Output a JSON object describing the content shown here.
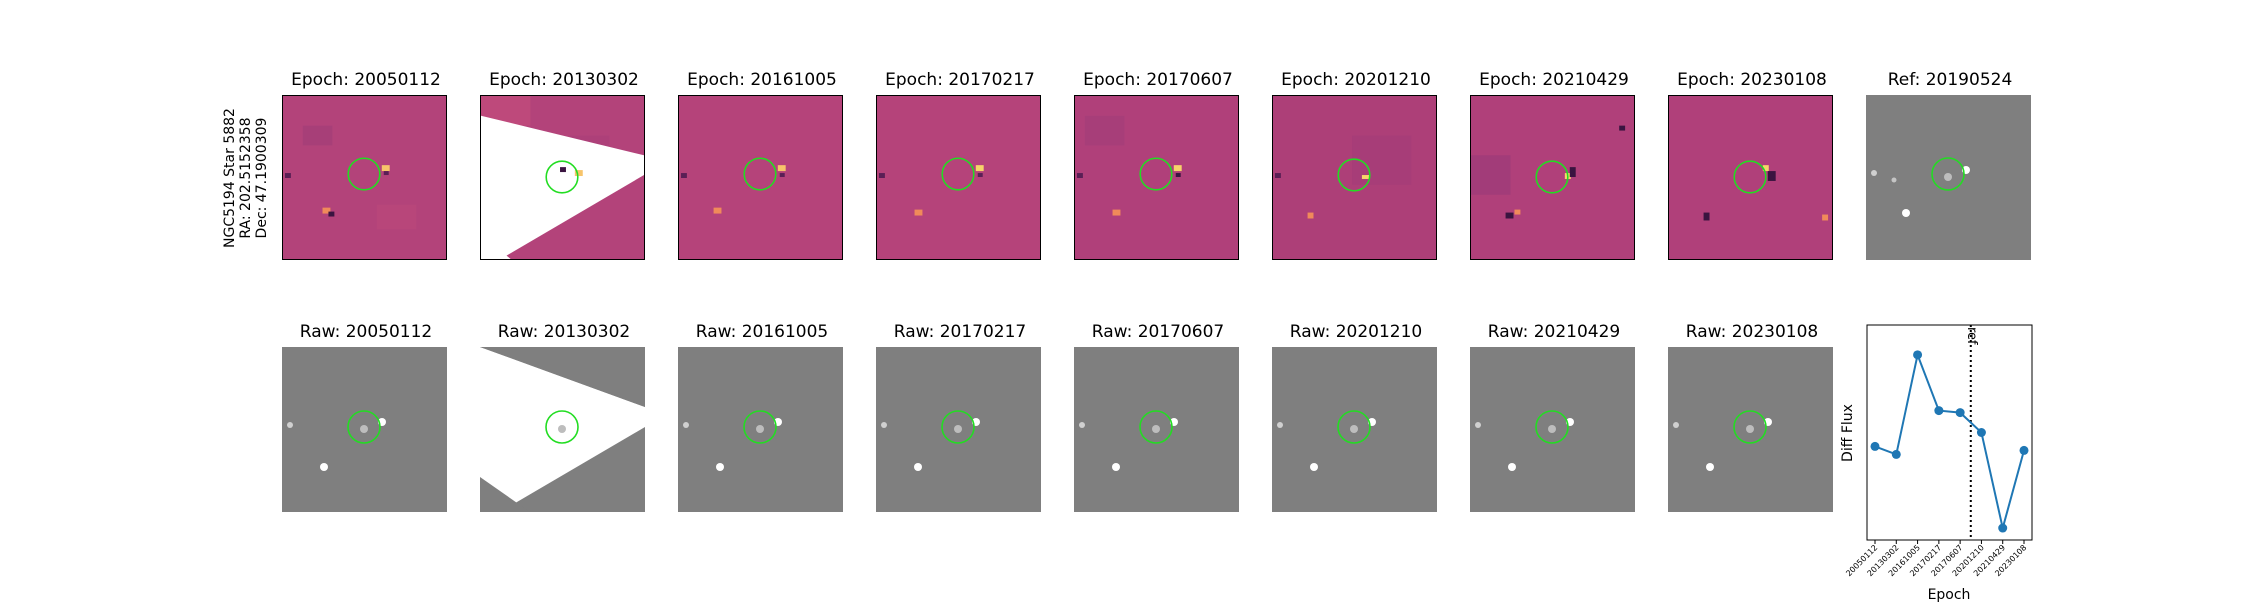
{
  "side_label": {
    "line1": "NGC5194 Star 5882",
    "line2": "RA: 202.5152358",
    "line3": "Dec: 47.1900309"
  },
  "diff_titles": [
    "Epoch: 20050112",
    "Epoch: 20130302",
    "Epoch: 20161005",
    "Epoch: 20170217",
    "Epoch: 20170607",
    "Epoch: 20201210",
    "Epoch: 20210429",
    "Epoch: 20230108"
  ],
  "ref_title": "Ref: 20190524",
  "raw_titles": [
    "Raw: 20050112",
    "Raw: 20130302",
    "Raw: 20161005",
    "Raw: 20170217",
    "Raw: 20170607",
    "Raw: 20201210",
    "Raw: 20210429",
    "Raw: 20230108"
  ],
  "colors": {
    "diff_background": "#b3437a",
    "raw_background": "#7f7f7f",
    "circle": "#22dd22",
    "series": "#1f77b4"
  },
  "chart_data": {
    "type": "line",
    "xlabel": "Epoch",
    "ylabel": "Diff Flux",
    "categories": [
      "20050112",
      "20130302",
      "20161005",
      "20170217",
      "20170607",
      "20201210",
      "20210429",
      "20230108"
    ],
    "values": [
      0.39,
      0.35,
      0.85,
      0.57,
      0.56,
      0.46,
      -0.02,
      0.37
    ],
    "ylim": [
      -0.08,
      1.0
    ],
    "reference_line": {
      "label": "ref",
      "position_between": [
        "20170607",
        "20201210"
      ]
    },
    "grid": false
  }
}
